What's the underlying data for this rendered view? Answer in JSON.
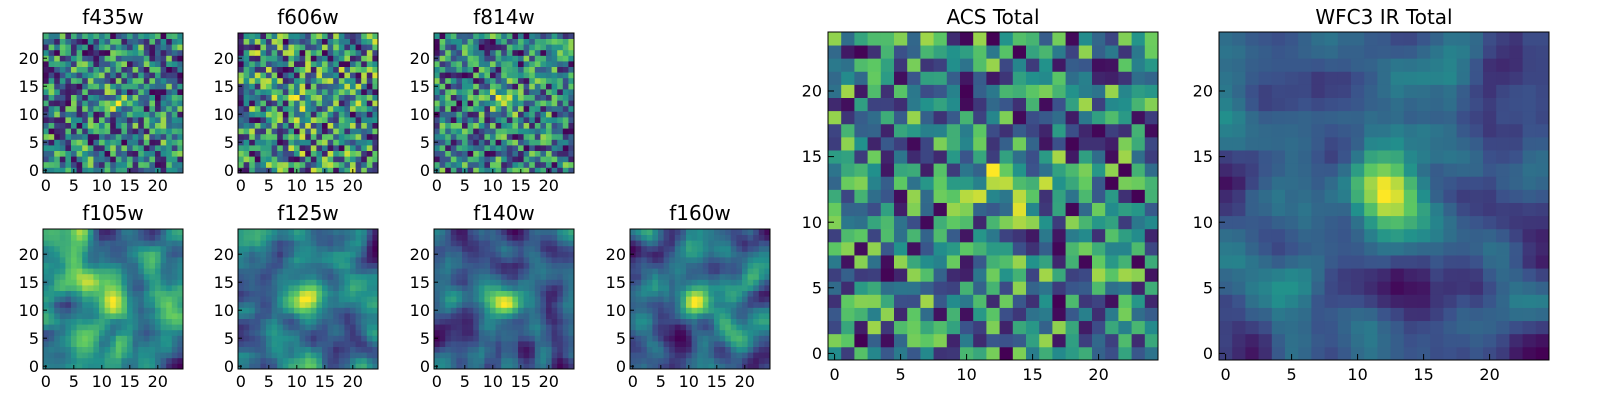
{
  "figure": {
    "colormap": "viridis",
    "colormap_stops": [
      "#440154",
      "#3b528b",
      "#21918c",
      "#5ec962",
      "#fde725"
    ]
  },
  "chart_data": [
    {
      "type": "heatmap",
      "title": "f435w",
      "grid_size": [
        25,
        25
      ],
      "xticks": [
        "0",
        "5",
        "10",
        "15",
        "20"
      ],
      "yticks": [
        "0",
        "5",
        "10",
        "15",
        "20"
      ],
      "xlim": [
        -0.5,
        24.5
      ],
      "ylim": [
        -0.5,
        24.5
      ],
      "seed": 11,
      "smooth": 0,
      "peak": [
        12,
        13
      ],
      "peak_amp": 0.25
    },
    {
      "type": "heatmap",
      "title": "f606w",
      "grid_size": [
        25,
        25
      ],
      "xticks": [
        "0",
        "5",
        "10",
        "15",
        "20"
      ],
      "yticks": [
        "0",
        "5",
        "10",
        "15",
        "20"
      ],
      "xlim": [
        -0.5,
        24.5
      ],
      "ylim": [
        -0.5,
        24.5
      ],
      "seed": 23,
      "smooth": 0,
      "peak": [
        12,
        12
      ],
      "peak_amp": 0.2
    },
    {
      "type": "heatmap",
      "title": "f814w",
      "grid_size": [
        25,
        25
      ],
      "xticks": [
        "0",
        "5",
        "10",
        "15",
        "20"
      ],
      "yticks": [
        "0",
        "5",
        "10",
        "15",
        "20"
      ],
      "xlim": [
        -0.5,
        24.5
      ],
      "ylim": [
        -0.5,
        24.5
      ],
      "seed": 37,
      "smooth": 0,
      "peak": [
        12,
        12
      ],
      "peak_amp": 0.3
    },
    {
      "type": "heatmap",
      "title": "f105w",
      "grid_size": [
        25,
        25
      ],
      "xticks": [
        "0",
        "5",
        "10",
        "15",
        "20"
      ],
      "yticks": [
        "0",
        "5",
        "10",
        "15",
        "20"
      ],
      "xlim": [
        -0.5,
        24.5
      ],
      "ylim": [
        -0.5,
        24.5
      ],
      "seed": 41,
      "smooth": 2,
      "peak": [
        12,
        12
      ],
      "peak_amp": 0.3
    },
    {
      "type": "heatmap",
      "title": "f125w",
      "grid_size": [
        25,
        25
      ],
      "xticks": [
        "0",
        "5",
        "10",
        "15",
        "20"
      ],
      "yticks": [
        "0",
        "5",
        "10",
        "15",
        "20"
      ],
      "xlim": [
        -0.5,
        24.5
      ],
      "ylim": [
        -0.5,
        24.5
      ],
      "seed": 53,
      "smooth": 2,
      "peak": [
        12,
        12
      ],
      "peak_amp": 0.3
    },
    {
      "type": "heatmap",
      "title": "f140w",
      "grid_size": [
        25,
        25
      ],
      "xticks": [
        "0",
        "5",
        "10",
        "15",
        "20"
      ],
      "yticks": [
        "0",
        "5",
        "10",
        "15",
        "20"
      ],
      "xlim": [
        -0.5,
        24.5
      ],
      "ylim": [
        -0.5,
        24.5
      ],
      "seed": 67,
      "smooth": 2,
      "peak": [
        12,
        12
      ],
      "peak_amp": 0.35
    },
    {
      "type": "heatmap",
      "title": "f160w",
      "grid_size": [
        25,
        25
      ],
      "xticks": [
        "0",
        "5",
        "10",
        "15",
        "20"
      ],
      "yticks": [
        "0",
        "5",
        "10",
        "15",
        "20"
      ],
      "xlim": [
        -0.5,
        24.5
      ],
      "ylim": [
        -0.5,
        24.5
      ],
      "seed": 79,
      "smooth": 2,
      "peak": [
        12,
        12
      ],
      "peak_amp": 0.4
    },
    {
      "type": "heatmap",
      "title": "ACS Total",
      "grid_size": [
        25,
        25
      ],
      "xticks": [
        "0",
        "5",
        "10",
        "15",
        "20"
      ],
      "yticks": [
        "0",
        "5",
        "10",
        "15",
        "20"
      ],
      "xlim": [
        -0.5,
        24.5
      ],
      "ylim": [
        -0.5,
        24.5
      ],
      "seed": 97,
      "smooth": 0,
      "peak": [
        13,
        13
      ],
      "peak_amp": 0.35
    },
    {
      "type": "heatmap",
      "title": "WFC3 IR Total",
      "grid_size": [
        25,
        25
      ],
      "xticks": [
        "0",
        "5",
        "10",
        "15",
        "20"
      ],
      "yticks": [
        "0",
        "5",
        "10",
        "15",
        "20"
      ],
      "xlim": [
        -0.5,
        24.5
      ],
      "ylim": [
        -0.5,
        24.5
      ],
      "seed": 131,
      "smooth": 2,
      "peak": [
        12,
        12
      ],
      "peak_amp": 0.6
    }
  ]
}
